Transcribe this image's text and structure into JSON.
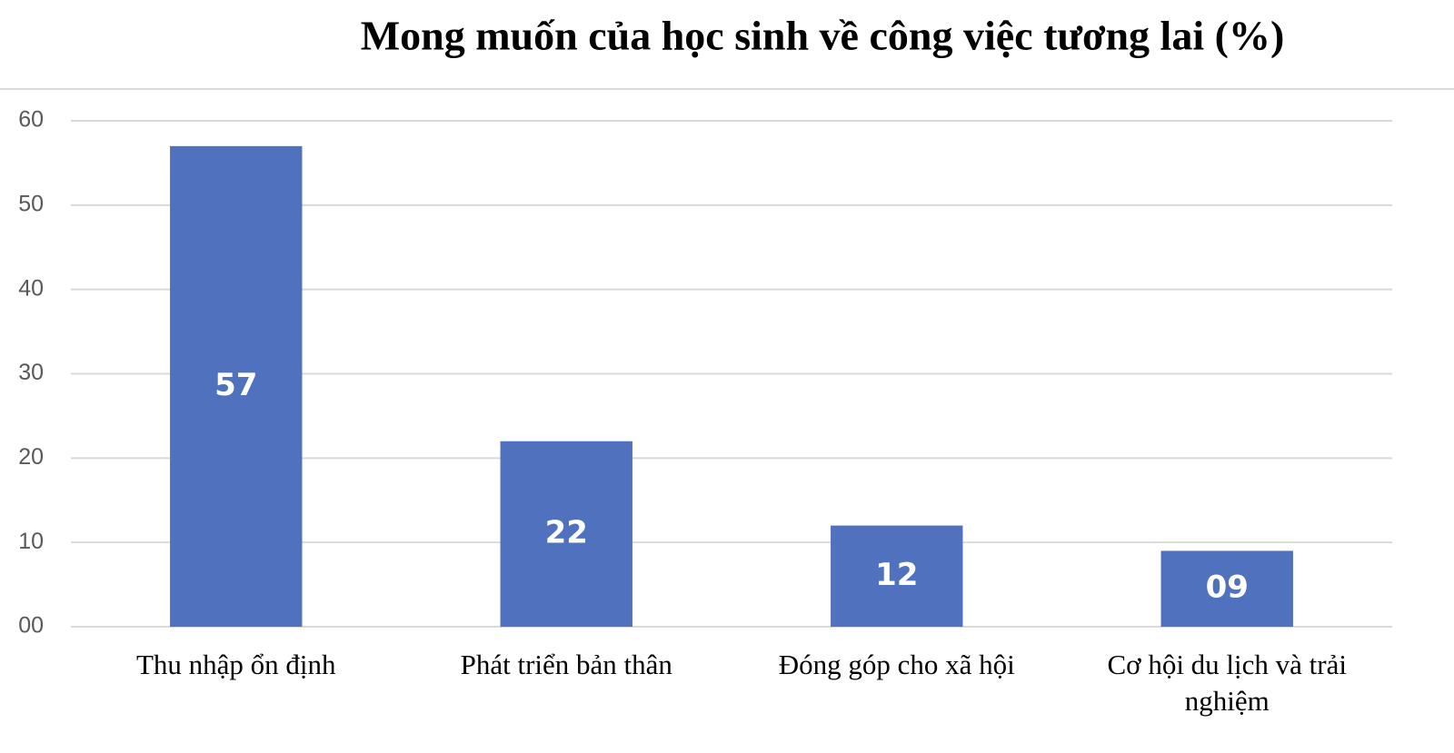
{
  "chart_data": {
    "type": "bar",
    "title": "Mong muốn của học sinh về công việc tương lai (%)",
    "categories": [
      "Thu nhập ổn định",
      "Phát triển bản thân",
      "Đóng góp cho xã hội",
      "Cơ hội du lịch và trải nghiệm"
    ],
    "values": [
      57,
      22,
      12,
      9
    ],
    "value_labels": [
      "57",
      "22",
      "12",
      "09"
    ],
    "color": "#4f71be",
    "ylim": [
      0,
      60
    ],
    "yticks": [
      {
        "value": 0,
        "label": "00"
      },
      10,
      20,
      30,
      40,
      50,
      60
    ],
    "grid": true
  }
}
